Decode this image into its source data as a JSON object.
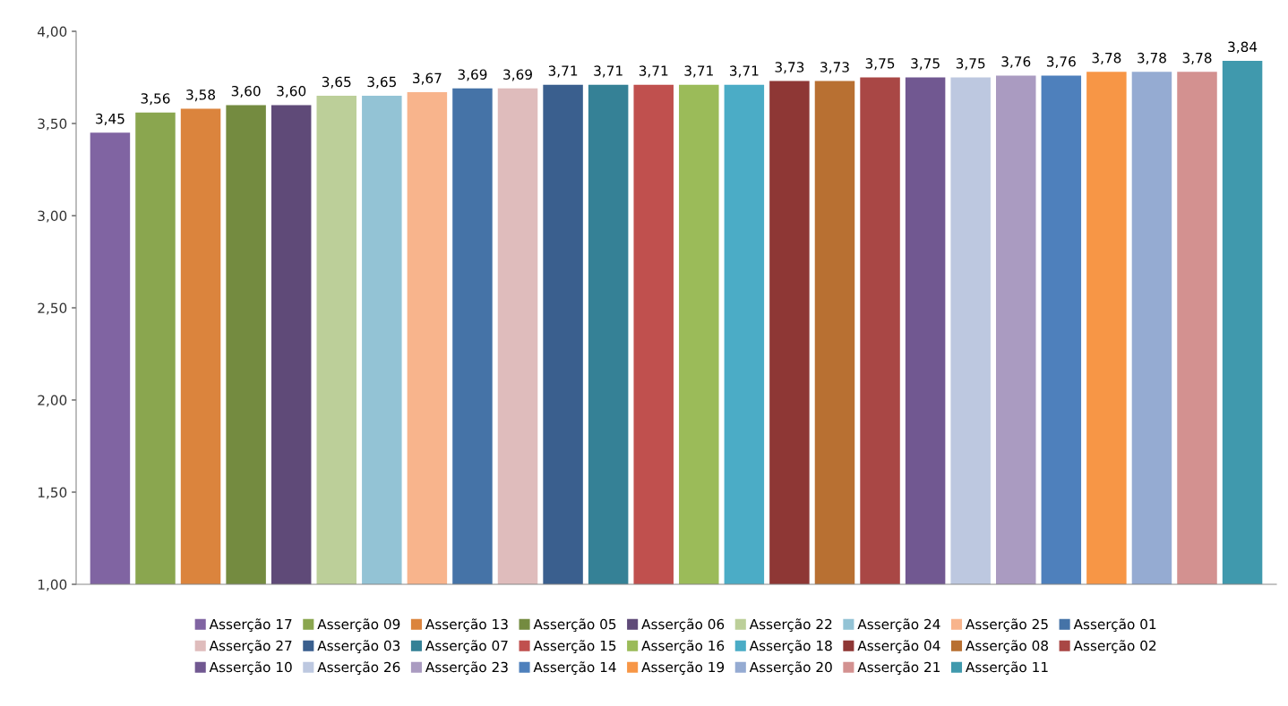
{
  "chart_data": {
    "type": "bar",
    "categories": [
      null
    ],
    "series": [
      {
        "name": "Asserção 17",
        "color": "#8064a2",
        "values": [
          3.45
        ],
        "value_labels": [
          "3,45"
        ]
      },
      {
        "name": "Asserção 09",
        "color": "#8aa64f",
        "values": [
          3.56
        ],
        "value_labels": [
          "3,56"
        ]
      },
      {
        "name": "Asserção 13",
        "color": "#db843d",
        "values": [
          3.58
        ],
        "value_labels": [
          "3,58"
        ]
      },
      {
        "name": "Asserção 05",
        "color": "#748b40",
        "values": [
          3.6
        ],
        "value_labels": [
          "3,60"
        ]
      },
      {
        "name": "Asserção 06",
        "color": "#5f4a78",
        "values": [
          3.6
        ],
        "value_labels": [
          "3,60"
        ]
      },
      {
        "name": "Asserção 22",
        "color": "#bccf99",
        "values": [
          3.65
        ],
        "value_labels": [
          "3,65"
        ]
      },
      {
        "name": "Asserção 24",
        "color": "#93c3d5",
        "values": [
          3.65
        ],
        "value_labels": [
          "3,65"
        ]
      },
      {
        "name": "Asserção 25",
        "color": "#f8b48c",
        "values": [
          3.67
        ],
        "value_labels": [
          "3,67"
        ]
      },
      {
        "name": "Asserção 01",
        "color": "#4573a7",
        "values": [
          3.69
        ],
        "value_labels": [
          "3,69"
        ]
      },
      {
        "name": "Asserção 27",
        "color": "#dfbcbc",
        "values": [
          3.69
        ],
        "value_labels": [
          "3,69"
        ]
      },
      {
        "name": "Asserção 03",
        "color": "#3a5f8e",
        "values": [
          3.71
        ],
        "value_labels": [
          "3,71"
        ]
      },
      {
        "name": "Asserção 07",
        "color": "#358196",
        "values": [
          3.71
        ],
        "value_labels": [
          "3,71"
        ]
      },
      {
        "name": "Asserção 15",
        "color": "#c0504e",
        "values": [
          3.71
        ],
        "value_labels": [
          "3,71"
        ]
      },
      {
        "name": "Asserção 16",
        "color": "#9bbb59",
        "values": [
          3.71
        ],
        "value_labels": [
          "3,71"
        ]
      },
      {
        "name": "Asserção 18",
        "color": "#4bacc6",
        "values": [
          3.71
        ],
        "value_labels": [
          "3,71"
        ]
      },
      {
        "name": "Asserção 04",
        "color": "#8e3735",
        "values": [
          3.73
        ],
        "value_labels": [
          "3,73"
        ]
      },
      {
        "name": "Asserção 08",
        "color": "#b87032",
        "values": [
          3.73
        ],
        "value_labels": [
          "3,73"
        ]
      },
      {
        "name": "Asserção 02",
        "color": "#a94745",
        "values": [
          3.75
        ],
        "value_labels": [
          "3,75"
        ]
      },
      {
        "name": "Asserção 10",
        "color": "#715891",
        "values": [
          3.75
        ],
        "value_labels": [
          "3,75"
        ]
      },
      {
        "name": "Asserção 26",
        "color": "#bdc8e0",
        "values": [
          3.75
        ],
        "value_labels": [
          "3,75"
        ]
      },
      {
        "name": "Asserção 23",
        "color": "#aa9bc1",
        "values": [
          3.76
        ],
        "value_labels": [
          "3,76"
        ]
      },
      {
        "name": "Asserção 14",
        "color": "#4e80bc",
        "values": [
          3.76
        ],
        "value_labels": [
          "3,76"
        ]
      },
      {
        "name": "Asserção 19",
        "color": "#f79646",
        "values": [
          3.78
        ],
        "value_labels": [
          "3,78"
        ]
      },
      {
        "name": "Asserção 20",
        "color": "#95abd2",
        "values": [
          3.78
        ],
        "value_labels": [
          "3,78"
        ]
      },
      {
        "name": "Asserção 21",
        "color": "#d39190",
        "values": [
          3.78
        ],
        "value_labels": [
          "3,78"
        ]
      },
      {
        "name": "Asserção 11",
        "color": "#4099ad",
        "values": [
          3.84
        ],
        "value_labels": [
          "3,84"
        ]
      }
    ],
    "ylim": [
      1,
      4
    ],
    "yticks": [
      {
        "value": 1,
        "label": "1,00"
      },
      {
        "value": 1.5,
        "label": "1,50"
      },
      {
        "value": 2,
        "label": "2,00"
      },
      {
        "value": 2.5,
        "label": "2,50"
      },
      {
        "value": 3,
        "label": "3,00"
      },
      {
        "value": 3.5,
        "label": "3,50"
      },
      {
        "value": 4,
        "label": "4,00"
      }
    ],
    "grid": false,
    "legend": "bottom"
  }
}
